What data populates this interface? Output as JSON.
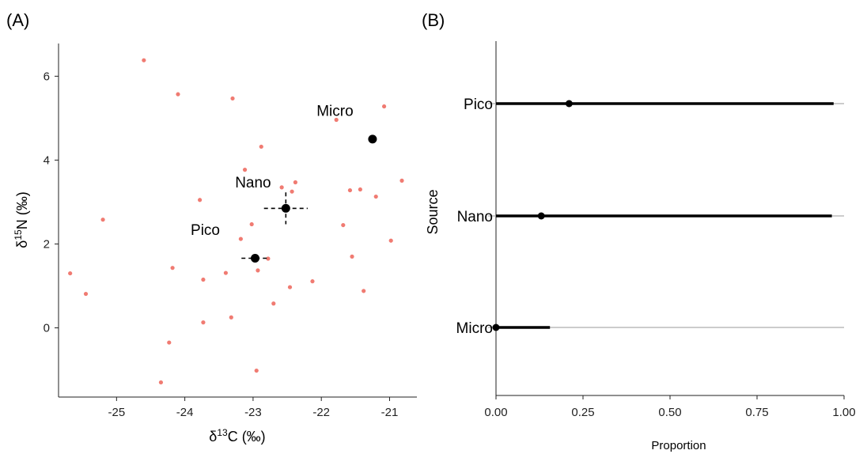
{
  "chart_data": [
    {
      "panel": "(A)",
      "type": "scatter",
      "xlabel": "δ13C (‰)",
      "ylabel": "δ15N (‰)",
      "xlim": [
        -25.85,
        -20.6
      ],
      "ylim": [
        -1.65,
        6.78
      ],
      "xticks": [
        -25,
        -24,
        -23,
        -22,
        -21
      ],
      "yticks": [
        0,
        2,
        4,
        6
      ],
      "consumers": {
        "color": "#f07b72",
        "x": [
          -24.6,
          -24.1,
          -23.3,
          -21.78,
          -21.08,
          -22.88,
          -23.12,
          -22.38,
          -22.58,
          -22.43,
          -21.58,
          -21.43,
          -21.2,
          -20.82,
          -23.78,
          -25.2,
          -23.02,
          -23.18,
          -21.68,
          -22.93,
          -22.78,
          -23.4,
          -23.73,
          -22.13,
          -22.46,
          -21.38,
          -21.55,
          -20.98,
          -25.68,
          -25.45,
          -24.18,
          -22.7,
          -23.32,
          -23.73,
          -24.23,
          -22.95,
          -24.35
        ],
        "y": [
          6.38,
          5.57,
          5.47,
          4.96,
          5.28,
          4.32,
          3.77,
          3.47,
          3.35,
          3.25,
          3.28,
          3.3,
          3.13,
          3.51,
          3.05,
          2.58,
          2.47,
          2.12,
          2.45,
          1.37,
          1.65,
          1.31,
          1.15,
          1.11,
          0.97,
          0.88,
          1.7,
          2.08,
          1.3,
          0.81,
          1.43,
          0.58,
          0.25,
          0.13,
          -0.35,
          -1.02,
          -1.3
        ]
      },
      "sources": [
        {
          "name": "Micro",
          "x": -21.25,
          "y": 4.5,
          "x_err": 0.0,
          "y_err": 0.0
        },
        {
          "name": "Nano",
          "x": -22.52,
          "y": 2.85,
          "x_err": 0.32,
          "y_err": 0.38
        },
        {
          "name": "Pico",
          "x": -22.97,
          "y": 1.66,
          "x_err": 0.2,
          "y_err": 0.0
        }
      ],
      "source_labels": [
        {
          "text": "Micro",
          "x": -21.8,
          "y": 5.05
        },
        {
          "text": "Nano",
          "x": -23.0,
          "y": 3.35
        },
        {
          "text": "Pico",
          "x": -23.7,
          "y": 2.22
        }
      ]
    },
    {
      "panel": "(B)",
      "type": "dot-interval",
      "xlabel": "Proportion",
      "ylabel": "Source",
      "xlim": [
        0,
        1
      ],
      "xticks": [
        0,
        0.25,
        0.5,
        0.75,
        1
      ],
      "xtick_labels": [
        "0.00",
        "0.25",
        "0.50",
        "0.75",
        "1.00"
      ],
      "categories": [
        "Pico",
        "Nano",
        "Micro"
      ],
      "estimates": [
        {
          "source": "Pico",
          "median": 0.21,
          "low": 0.0,
          "high": 0.97
        },
        {
          "source": "Nano",
          "median": 0.13,
          "low": 0.0,
          "high": 0.965
        },
        {
          "source": "Micro",
          "median": 0.0,
          "low": 0.0,
          "high": 0.155
        }
      ]
    }
  ]
}
